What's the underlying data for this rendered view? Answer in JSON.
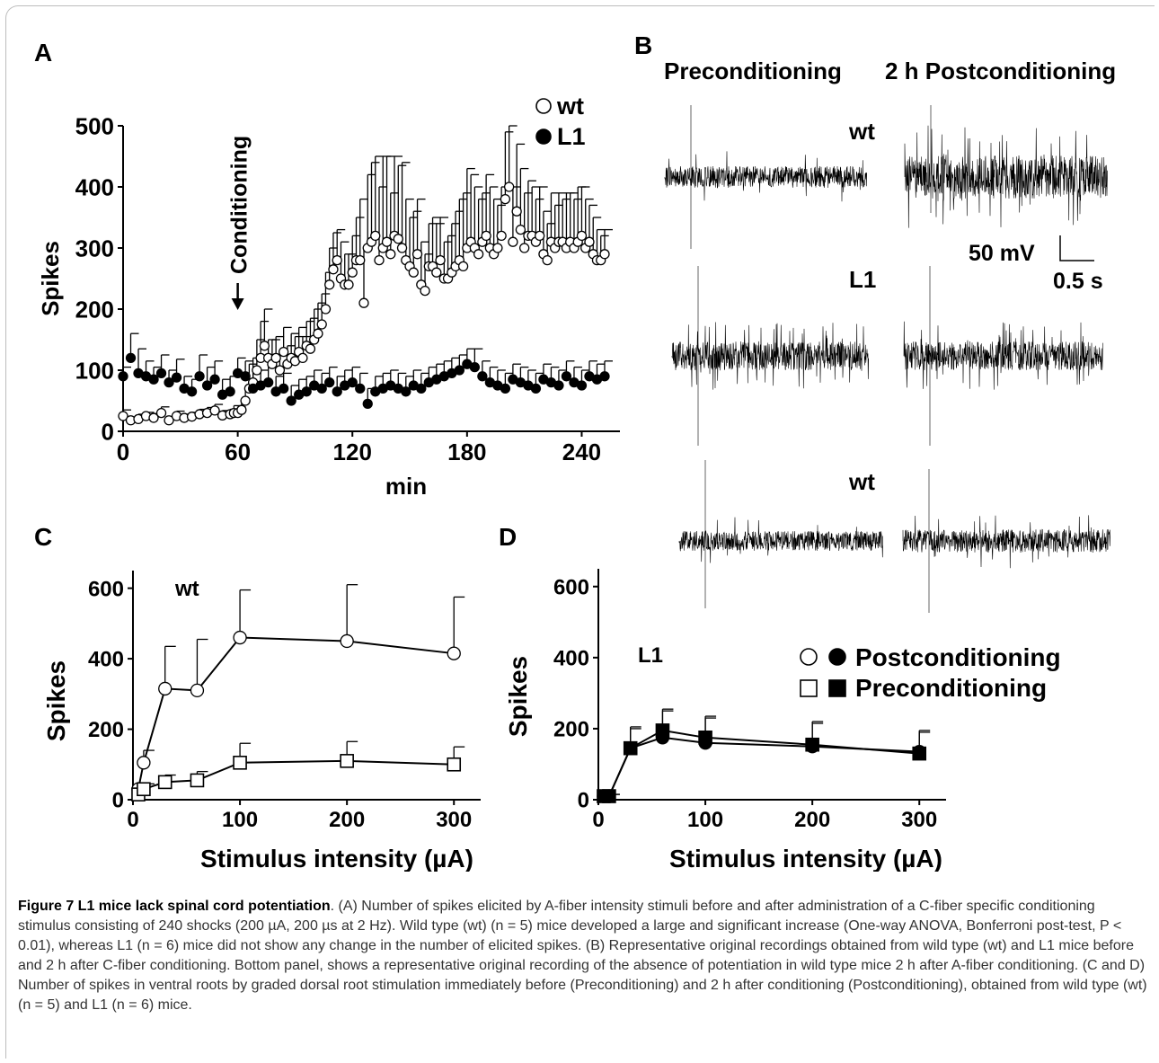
{
  "panels": {
    "A": "A",
    "B": "B",
    "C": "C",
    "D": "D"
  },
  "panel_b": {
    "col_pre": "Preconditioning",
    "col_post": "2 h Postconditioning",
    "row_labels": [
      "wt",
      "L1",
      "wt"
    ],
    "scale_v": "50 mV",
    "scale_t": "0.5 s"
  },
  "chart_data": [
    {
      "id": "A",
      "type": "scatter",
      "title": "",
      "xlabel": "min",
      "ylabel": "Spikes",
      "xlim": [
        0,
        260
      ],
      "ylim": [
        0,
        500
      ],
      "xticks": [
        "0",
        "60",
        "120",
        "180",
        "240"
      ],
      "yticks": [
        "0",
        "100",
        "200",
        "300",
        "400",
        "500"
      ],
      "annotation": "Conditioning",
      "annotation_x": 60,
      "legend_position": "top-right",
      "series": [
        {
          "name": "wt",
          "marker": "open-circle",
          "x": [
            0,
            4,
            8,
            12,
            16,
            20,
            24,
            28,
            32,
            36,
            40,
            44,
            48,
            52,
            56,
            58,
            60,
            62,
            64,
            66,
            68,
            70,
            72,
            74,
            76,
            78,
            80,
            82,
            84,
            86,
            88,
            90,
            92,
            94,
            96,
            98,
            100,
            102,
            104,
            106,
            108,
            110,
            112,
            114,
            116,
            118,
            120,
            122,
            124,
            126,
            128,
            130,
            132,
            134,
            136,
            138,
            140,
            142,
            144,
            146,
            148,
            150,
            152,
            154,
            156,
            158,
            160,
            162,
            164,
            166,
            168,
            170,
            172,
            174,
            176,
            178,
            180,
            182,
            184,
            186,
            188,
            190,
            192,
            194,
            196,
            198,
            200,
            202,
            204,
            206,
            208,
            210,
            212,
            214,
            216,
            218,
            220,
            222,
            224,
            226,
            228,
            230,
            232,
            234,
            236,
            238,
            240,
            242,
            244,
            246,
            248,
            250,
            252
          ],
          "y": [
            25,
            18,
            20,
            25,
            22,
            30,
            18,
            25,
            22,
            24,
            28,
            30,
            34,
            26,
            28,
            30,
            30,
            35,
            50,
            70,
            80,
            100,
            120,
            140,
            120,
            110,
            120,
            100,
            130,
            110,
            120,
            115,
            130,
            120,
            140,
            135,
            150,
            160,
            175,
            200,
            240,
            265,
            280,
            250,
            240,
            240,
            260,
            280,
            280,
            210,
            300,
            310,
            320,
            280,
            300,
            310,
            290,
            320,
            315,
            300,
            280,
            270,
            260,
            290,
            240,
            230,
            270,
            270,
            260,
            280,
            250,
            250,
            260,
            270,
            280,
            270,
            300,
            310,
            300,
            290,
            310,
            320,
            300,
            290,
            300,
            320,
            380,
            400,
            310,
            360,
            330,
            300,
            320,
            320,
            310,
            320,
            290,
            280,
            310,
            300,
            310,
            310,
            300,
            310,
            300,
            310,
            320,
            300,
            310,
            290,
            280,
            280,
            290
          ],
          "err": [
            10,
            5,
            8,
            6,
            7,
            10,
            5,
            8,
            6,
            7,
            8,
            9,
            10,
            8,
            8,
            12,
            10,
            12,
            20,
            40,
            40,
            50,
            60,
            60,
            30,
            40,
            35,
            30,
            40,
            30,
            40,
            40,
            40,
            35,
            40,
            50,
            50,
            50,
            50,
            60,
            60,
            60,
            50,
            60,
            50,
            50,
            60,
            70,
            100,
            90,
            120,
            130,
            130,
            120,
            150,
            140,
            100,
            130,
            120,
            140,
            100,
            80,
            100,
            90,
            70,
            60,
            70,
            80,
            80,
            70,
            60,
            70,
            80,
            90,
            100,
            120,
            130,
            110,
            100,
            90,
            80,
            100,
            100,
            90,
            70,
            80,
            110,
            100,
            90,
            110,
            100,
            90,
            90,
            80,
            70,
            80,
            70,
            60,
            80,
            70,
            80,
            70,
            90,
            80,
            80,
            90,
            80,
            80,
            60,
            60,
            50,
            40,
            40
          ]
        },
        {
          "name": "L1",
          "marker": "filled-circle",
          "x": [
            0,
            4,
            8,
            12,
            16,
            20,
            24,
            28,
            32,
            36,
            40,
            44,
            48,
            52,
            56,
            60,
            64,
            68,
            72,
            76,
            80,
            84,
            88,
            92,
            96,
            100,
            104,
            108,
            112,
            116,
            120,
            124,
            128,
            132,
            136,
            140,
            144,
            148,
            152,
            156,
            160,
            164,
            168,
            172,
            176,
            180,
            184,
            188,
            192,
            196,
            200,
            204,
            208,
            212,
            216,
            220,
            224,
            228,
            232,
            236,
            240,
            244,
            248,
            252
          ],
          "y": [
            90,
            120,
            95,
            90,
            85,
            95,
            80,
            88,
            70,
            65,
            90,
            75,
            85,
            60,
            65,
            95,
            90,
            70,
            75,
            80,
            65,
            70,
            50,
            60,
            65,
            75,
            70,
            80,
            65,
            75,
            80,
            70,
            45,
            65,
            70,
            75,
            70,
            65,
            75,
            70,
            80,
            85,
            90,
            95,
            100,
            110,
            105,
            90,
            80,
            75,
            70,
            85,
            80,
            75,
            70,
            85,
            80,
            75,
            90,
            80,
            75,
            90,
            85,
            90
          ],
          "err": [
            15,
            40,
            40,
            25,
            20,
            30,
            20,
            30,
            20,
            20,
            35,
            30,
            30,
            25,
            25,
            25,
            25,
            25,
            25,
            25,
            25,
            25,
            25,
            25,
            25,
            25,
            25,
            25,
            25,
            25,
            25,
            25,
            25,
            25,
            25,
            25,
            25,
            25,
            25,
            25,
            25,
            25,
            25,
            25,
            25,
            25,
            30,
            25,
            25,
            25,
            25,
            25,
            25,
            25,
            25,
            25,
            25,
            25,
            25,
            25,
            25,
            25,
            25,
            25
          ]
        }
      ]
    },
    {
      "id": "C",
      "type": "line",
      "title": "wt",
      "xlabel": "Stimulus intensity (µA)",
      "ylabel": "Spikes",
      "xlim": [
        0,
        325
      ],
      "ylim": [
        0,
        650
      ],
      "xticks": [
        "0",
        "100",
        "200",
        "300"
      ],
      "yticks": [
        "0",
        "200",
        "400",
        "600"
      ],
      "series": [
        {
          "name": "Postconditioning",
          "marker": "open-circle",
          "x": [
            5,
            10,
            30,
            60,
            100,
            200,
            300
          ],
          "y": [
            30,
            105,
            315,
            310,
            460,
            450,
            415
          ],
          "err": [
            15,
            35,
            120,
            145,
            135,
            160,
            160
          ]
        },
        {
          "name": "Preconditioning",
          "marker": "open-square",
          "x": [
            5,
            10,
            30,
            60,
            100,
            200,
            300
          ],
          "y": [
            15,
            30,
            50,
            55,
            105,
            110,
            100
          ],
          "err": [
            8,
            15,
            20,
            25,
            55,
            55,
            50
          ]
        }
      ]
    },
    {
      "id": "D",
      "type": "line",
      "title": "L1",
      "xlabel": "Stimulus intensity (µA)",
      "ylabel": "Spikes",
      "xlim": [
        0,
        325
      ],
      "ylim": [
        0,
        650
      ],
      "xticks": [
        "0",
        "100",
        "200",
        "300"
      ],
      "yticks": [
        "0",
        "200",
        "400",
        "600"
      ],
      "legend_position": "top-right",
      "legend": [
        "Postconditioning",
        "Preconditioning"
      ],
      "series": [
        {
          "name": "Postconditioning",
          "marker": "filled-circle",
          "x": [
            5,
            10,
            30,
            60,
            100,
            200,
            300
          ],
          "y": [
            10,
            10,
            145,
            175,
            160,
            150,
            135
          ],
          "err": [
            5,
            5,
            55,
            75,
            70,
            65,
            55
          ]
        },
        {
          "name": "Preconditioning",
          "marker": "filled-square",
          "x": [
            5,
            10,
            30,
            60,
            100,
            200,
            300
          ],
          "y": [
            10,
            10,
            145,
            195,
            175,
            155,
            130
          ],
          "err": [
            5,
            5,
            60,
            60,
            60,
            65,
            65
          ]
        }
      ]
    }
  ],
  "caption": {
    "title": "Figure 7 L1 mice lack spinal cord potentiation",
    "text": ". (A) Number of spikes elicited by A-fiber intensity stimuli before and after administration of a C-fiber specific conditioning stimulus consisting of 240 shocks (200 µA, 200 µs at 2 Hz). Wild type (wt) (n = 5) mice developed a large and significant increase (One-way ANOVA, Bonferroni post-test, P < 0.01), whereas L1 (n = 6) mice did not show any change in the number of elicited spikes. (B) Representative original recordings obtained from wild type (wt) and L1 mice before and 2 h after C-fiber conditioning. Bottom panel, shows a representative original recording of the absence of potentiation in wild type mice 2 h after A-fiber conditioning. (C and D) Number of spikes in ventral roots by graded dorsal root stimulation immediately before (Preconditioning) and 2 h after conditioning (Postconditioning), obtained from wild type (wt) (n = 5) and L1 (n = 6) mice."
  }
}
